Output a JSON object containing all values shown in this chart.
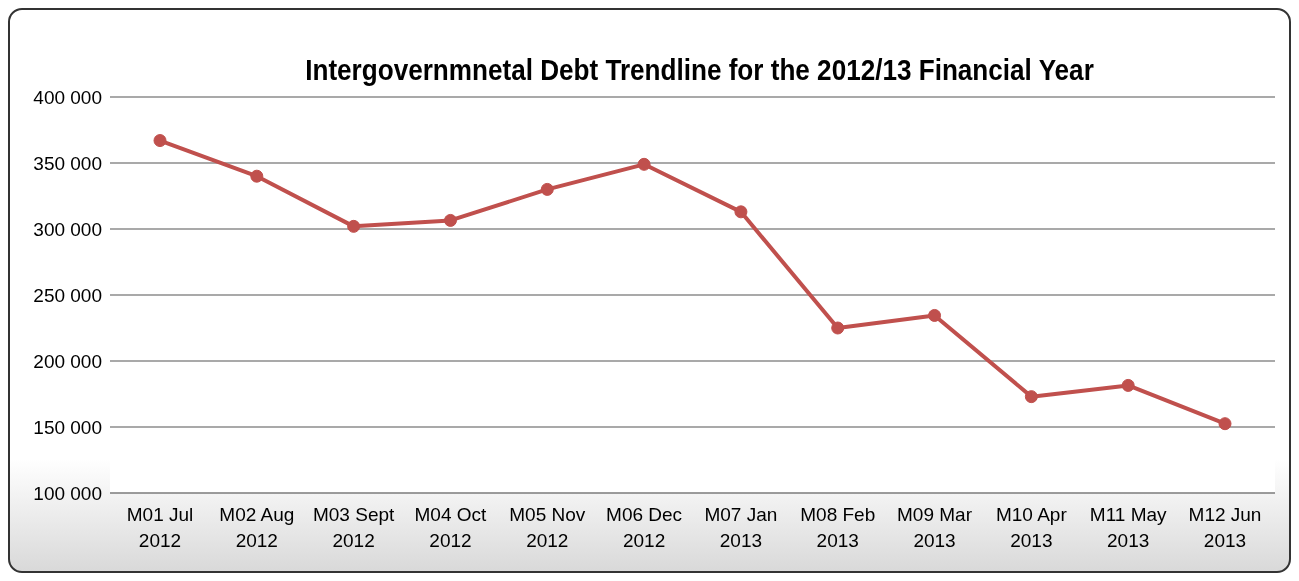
{
  "chart_data": {
    "type": "line",
    "title": "Intergovernmnetal Debt Trendline  for the 2012/13 Financial Year",
    "categories": [
      "M01 Jul 2012",
      "M02 Aug 2012",
      "M03 Sept 2012",
      "M04 Oct 2012",
      "M05 Nov 2012",
      "M06 Dec 2012",
      "M07 Jan 2013",
      "M08 Feb 2013",
      "M09 Mar 2013",
      "M10 Apr 2013",
      "M11 May 2013",
      "M12 Jun 2013"
    ],
    "series": [
      {
        "color": "#c0504d",
        "values": [
          367000,
          340000,
          302000,
          306500,
          330000,
          349000,
          313000,
          225000,
          234500,
          173000,
          181500,
          152500
        ]
      }
    ],
    "ylim": [
      100000,
      400000
    ],
    "yticks": [
      {
        "value": 100000,
        "label": "100 000"
      },
      {
        "value": 150000,
        "label": "150 000"
      },
      {
        "value": 200000,
        "label": "200 000"
      },
      {
        "value": 250000,
        "label": "250 000"
      },
      {
        "value": 300000,
        "label": "300 000"
      },
      {
        "value": 350000,
        "label": "350 000"
      },
      {
        "value": 400000,
        "label": "400 000"
      }
    ],
    "grid": "y",
    "legend": false,
    "marker": "circle",
    "line_style": "solid"
  }
}
